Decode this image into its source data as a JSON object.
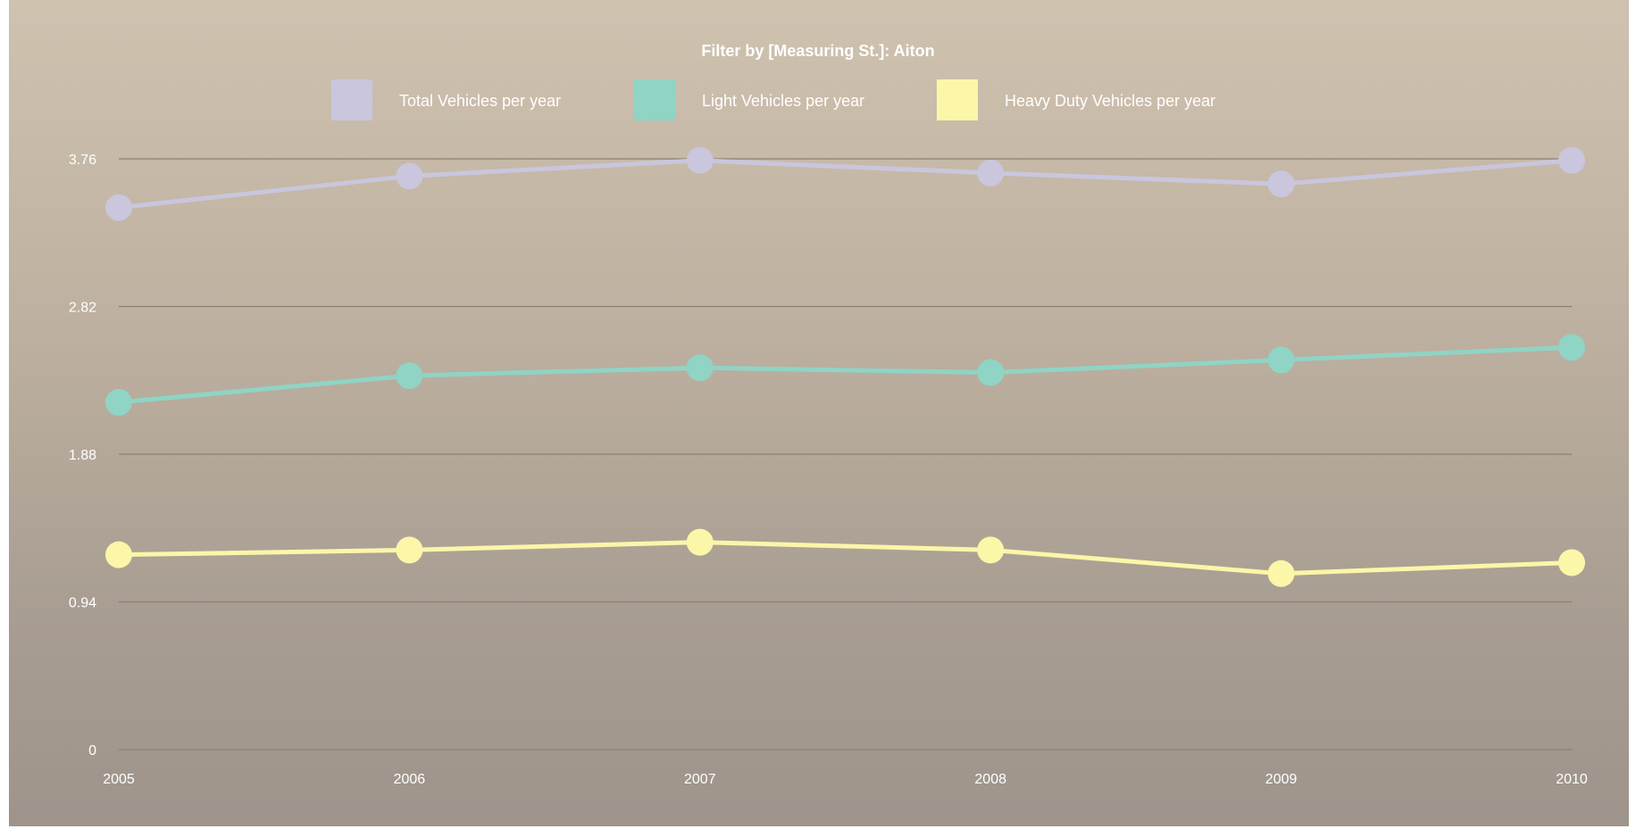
{
  "chart_data": {
    "type": "line",
    "title": "Filter by [Measuring St.]: Aiton",
    "categories": [
      "2005",
      "2006",
      "2007",
      "2008",
      "2009",
      "2010"
    ],
    "y_ticks": [
      "0",
      "0.94",
      "1.88",
      "2.82",
      "3.76"
    ],
    "ylim": [
      0,
      3.76
    ],
    "grid": true,
    "legend_position": "top-center",
    "series": [
      {
        "name": "Total Vehicles per year",
        "color": "#c9c6dd",
        "values": [
          3.45,
          3.65,
          3.75,
          3.67,
          3.6,
          3.75
        ]
      },
      {
        "name": "Light Vehicles per year",
        "color": "#8fd4c5",
        "values": [
          2.21,
          2.38,
          2.43,
          2.4,
          2.48,
          2.56
        ]
      },
      {
        "name": "Heavy Duty Vehicles per year",
        "color": "#fbf6a8",
        "values": [
          1.24,
          1.27,
          1.32,
          1.27,
          1.12,
          1.19
        ]
      }
    ]
  }
}
